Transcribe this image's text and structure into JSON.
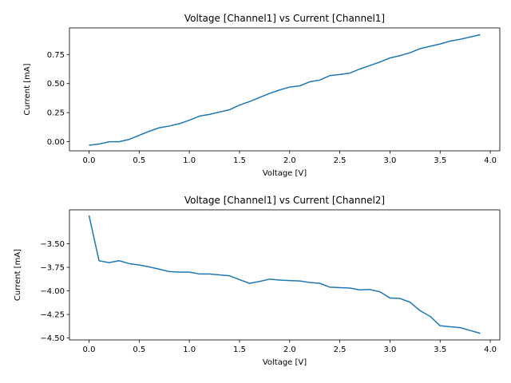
{
  "chart_data": [
    {
      "type": "line",
      "title": "Voltage [Channel1] vs Current [Channel1]",
      "xlabel": "Voltage [V]",
      "ylabel": "Current [mA]",
      "xlim": [
        -0.195,
        4.095
      ],
      "ylim": [
        -0.078,
        0.978
      ],
      "xticks": [
        0.0,
        0.5,
        1.0,
        1.5,
        2.0,
        2.5,
        3.0,
        3.5,
        4.0
      ],
      "xtick_labels": [
        "0.0",
        "0.5",
        "1.0",
        "1.5",
        "2.0",
        "2.5",
        "3.0",
        "3.5",
        "4.0"
      ],
      "yticks": [
        0.0,
        0.25,
        0.5,
        0.75
      ],
      "ytick_labels": [
        "0.00",
        "0.25",
        "0.50",
        "0.75"
      ],
      "grid": false,
      "color": "#1f77b4",
      "x": [
        0.0,
        0.1,
        0.2,
        0.3,
        0.4,
        0.5,
        0.6,
        0.7,
        0.8,
        0.9,
        1.0,
        1.1,
        1.2,
        1.3,
        1.4,
        1.5,
        1.6,
        1.7,
        1.8,
        1.9,
        2.0,
        2.1,
        2.2,
        2.3,
        2.4,
        2.5,
        2.6,
        2.7,
        2.8,
        2.9,
        3.0,
        3.1,
        3.2,
        3.3,
        3.4,
        3.5,
        3.6,
        3.7,
        3.8,
        3.9
      ],
      "y": [
        -0.03,
        -0.02,
        0.0,
        0.0,
        0.02,
        0.055,
        0.09,
        0.12,
        0.135,
        0.155,
        0.185,
        0.22,
        0.235,
        0.255,
        0.275,
        0.315,
        0.345,
        0.38,
        0.415,
        0.445,
        0.47,
        0.48,
        0.515,
        0.53,
        0.568,
        0.578,
        0.59,
        0.625,
        0.655,
        0.685,
        0.72,
        0.74,
        0.765,
        0.8,
        0.82,
        0.84,
        0.865,
        0.88,
        0.9,
        0.92
      ]
    },
    {
      "type": "line",
      "title": "Voltage [Channel1] vs Current [Channel2]",
      "xlabel": "Voltage [V]",
      "ylabel": "Current [mA]",
      "xlim": [
        -0.195,
        4.095
      ],
      "ylim": [
        -4.52,
        -3.14
      ],
      "xticks": [
        0.0,
        0.5,
        1.0,
        1.5,
        2.0,
        2.5,
        3.0,
        3.5,
        4.0
      ],
      "xtick_labels": [
        "0.0",
        "0.5",
        "1.0",
        "1.5",
        "2.0",
        "2.5",
        "3.0",
        "3.5",
        "4.0"
      ],
      "yticks": [
        -3.5,
        -3.75,
        -4.0,
        -4.25,
        -4.5
      ],
      "ytick_labels": [
        "−3.50",
        "−3.75",
        "−4.00",
        "−4.25",
        "−4.50"
      ],
      "grid": false,
      "color": "#1f77b4",
      "x": [
        0.0,
        0.1,
        0.2,
        0.3,
        0.4,
        0.5,
        0.6,
        0.7,
        0.8,
        0.9,
        1.0,
        1.1,
        1.2,
        1.3,
        1.4,
        1.5,
        1.6,
        1.7,
        1.8,
        1.9,
        2.0,
        2.1,
        2.2,
        2.3,
        2.4,
        2.5,
        2.6,
        2.7,
        2.8,
        2.9,
        3.0,
        3.1,
        3.2,
        3.3,
        3.4,
        3.5,
        3.6,
        3.7,
        3.8,
        3.9
      ],
      "y": [
        -3.2,
        -3.68,
        -3.7,
        -3.68,
        -3.71,
        -3.725,
        -3.745,
        -3.77,
        -3.795,
        -3.8,
        -3.8,
        -3.82,
        -3.82,
        -3.83,
        -3.84,
        -3.88,
        -3.92,
        -3.9,
        -3.875,
        -3.885,
        -3.89,
        -3.895,
        -3.91,
        -3.92,
        -3.96,
        -3.965,
        -3.97,
        -3.99,
        -3.985,
        -4.01,
        -4.075,
        -4.08,
        -4.12,
        -4.21,
        -4.27,
        -4.37,
        -4.38,
        -4.39,
        -4.42,
        -4.45
      ]
    }
  ]
}
